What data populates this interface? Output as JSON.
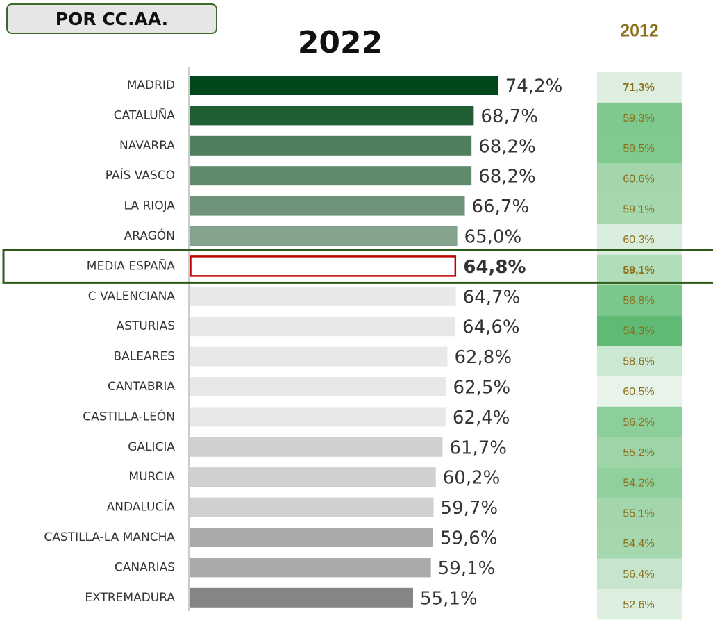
{
  "chart_data": {
    "type": "bar",
    "orientation": "horizontal",
    "title": "POR CC.AA.",
    "categories": [
      "MADRID",
      "CATALUÑA",
      "NAVARRA",
      "PAÍS VASCO",
      "LA RIOJA",
      "ARAGÓN",
      "MEDIA ESPAÑA",
      "C VALENCIANA",
      "ASTURIAS",
      "BALEARES",
      "CANTABRIA",
      "CASTILLA-LEÓN",
      "GALICIA",
      "MURCIA",
      "ANDALUCÍA",
      "CASTILLA-LA MANCHA",
      "CANARIAS",
      "EXTREMADURA"
    ],
    "highlight": 6,
    "xlim": [
      5,
      80
    ],
    "series": [
      {
        "name": "2022",
        "values": [
          74.2,
          68.7,
          68.2,
          68.2,
          66.7,
          65.0,
          64.8,
          64.7,
          64.6,
          62.8,
          62.5,
          62.4,
          61.7,
          60.2,
          59.7,
          59.6,
          59.1,
          55.1
        ],
        "value_labels": [
          "74,2%",
          "68,7%",
          "68,2%",
          "68,2%",
          "66,7%",
          "65,0%",
          "64,8%",
          "64,7%",
          "64,6%",
          "62,8%",
          "62,5%",
          "62,4%",
          "61,7%",
          "60,2%",
          "59,7%",
          "59,6%",
          "59,1%",
          "55,1%"
        ],
        "colors": [
          "#00471b",
          "#225e34",
          "#4f7f5d",
          "#5f8a6c",
          "#6f9479",
          "#85a38d",
          "#ffffff",
          "#e8e8e8",
          "#e8e8e8",
          "#e8e8e8",
          "#e8e8e8",
          "#e8e8e8",
          "#d0d0d0",
          "#d0d0d0",
          "#d0d0d0",
          "#aaaaaa",
          "#aaaaaa",
          "#858585"
        ]
      },
      {
        "name": "2012",
        "values": [
          71.3,
          59.3,
          59.5,
          60.6,
          59.1,
          60.3,
          59.1,
          56.8,
          54.3,
          58.6,
          60.5,
          56.2,
          55.2,
          54.2,
          55.1,
          54.4,
          56.4,
          52.6
        ],
        "value_labels": [
          "71,3%",
          "59,3%",
          "59,5%",
          "60,6%",
          "59,1%",
          "60,3%",
          "59,1%",
          "56,8%",
          "54,3%",
          "58,6%",
          "60,5%",
          "56,2%",
          "55,2%",
          "54,2%",
          "55,1%",
          "54,4%",
          "56,4%",
          "52,6%"
        ],
        "colors": [
          "#deefe0",
          "#7fc98e",
          "#80c98f",
          "#a3d6ad",
          "#a6d8b0",
          "#d9eedd",
          "#b2ddb9",
          "#7cc78b",
          "#5fbb74",
          "#cce8d2",
          "#e8f4ea",
          "#8ccf9a",
          "#9dd4a8",
          "#8fd09c",
          "#a3d6ad",
          "#a6d8b0",
          "#c6e5cc",
          "#ddf0e0"
        ]
      }
    ]
  }
}
